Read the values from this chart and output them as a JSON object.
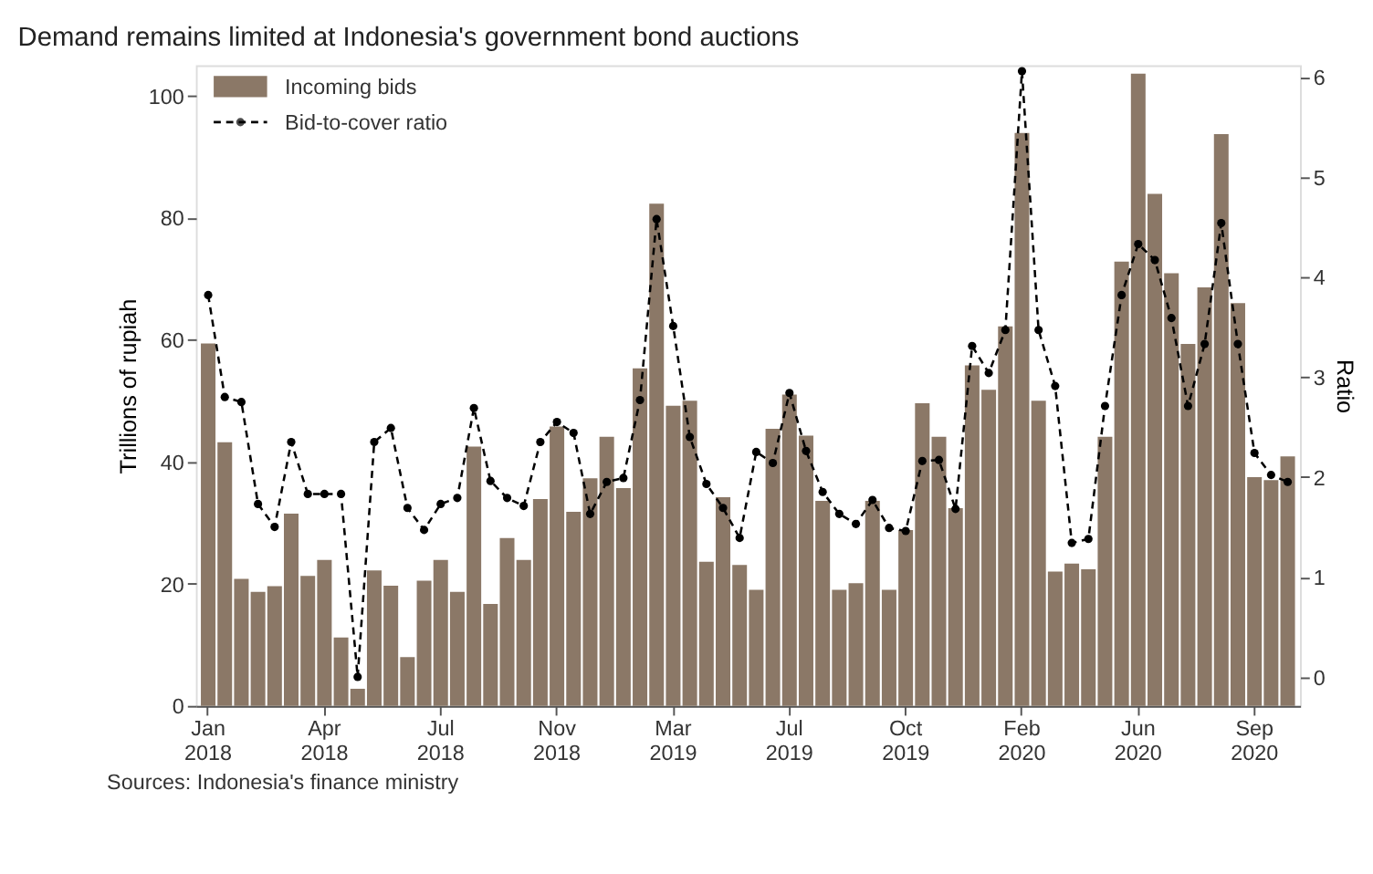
{
  "chart_data": {
    "type": "bar",
    "title": "Demand remains limited at Indonesia's government bond auctions",
    "categories": [
      "Jan 2018",
      null,
      null,
      null,
      null,
      null,
      null,
      "Apr 2018",
      null,
      null,
      null,
      null,
      null,
      null,
      "Jul 2018",
      null,
      null,
      null,
      null,
      null,
      null,
      "Nov 2018",
      null,
      null,
      null,
      null,
      null,
      null,
      "Mar 2019",
      null,
      null,
      null,
      null,
      null,
      null,
      "Jul 2019",
      null,
      null,
      null,
      null,
      null,
      null,
      "Oct 2019",
      null,
      null,
      null,
      null,
      null,
      null,
      "Feb 2020",
      null,
      null,
      null,
      null,
      null,
      null,
      "Jun 2020",
      null,
      null,
      null,
      null,
      null,
      null,
      "Sep 2020",
      null,
      null
    ],
    "series": [
      {
        "name": "Incoming bids",
        "color": "#8b7867",
        "values": [
          59.4,
          43.2,
          20.8,
          18.7,
          19.6,
          31.5,
          21.3,
          23.9,
          11.2,
          2.8,
          22.2,
          19.7,
          8.0,
          20.5,
          23.9,
          18.7,
          42.5,
          16.7,
          27.5,
          23.9,
          33.9,
          45.8,
          31.8,
          37.3,
          44.1,
          35.7,
          55.3,
          82.3,
          49.2,
          50.0,
          23.6,
          34.2,
          23.1,
          19.0,
          45.4,
          51.0,
          44.3,
          33.6,
          19.0,
          20.1,
          33.6,
          19.0,
          28.8,
          49.6,
          44.1,
          32.4,
          55.8,
          51.8,
          62.2,
          93.9,
          50.0,
          22.0,
          23.3,
          22.4,
          44.1,
          72.8,
          103.6,
          83.9,
          70.9,
          59.3,
          68.6,
          93.7,
          66.0,
          37.5,
          37.0,
          40.9
        ]
      },
      {
        "name": "Bid-to-cover ratio",
        "type": "line",
        "axis": "y2",
        "color": "#000000",
        "marker": "circle",
        "line_style": "dashed",
        "values": [
          3.82,
          2.8,
          2.75,
          1.73,
          1.5,
          2.35,
          1.83,
          1.83,
          1.83,
          0.0,
          2.35,
          2.49,
          1.69,
          1.47,
          1.73,
          1.79,
          2.69,
          1.96,
          1.79,
          1.71,
          2.35,
          2.55,
          2.44,
          1.63,
          1.95,
          1.99,
          2.77,
          4.58,
          3.51,
          2.4,
          1.93,
          1.69,
          1.39,
          2.25,
          2.14,
          2.84,
          2.26,
          1.85,
          1.63,
          1.53,
          1.77,
          1.49,
          1.46,
          2.16,
          2.17,
          1.68,
          3.31,
          3.04,
          3.47,
          6.06,
          3.47,
          2.91,
          1.34,
          1.38,
          2.71,
          3.82,
          4.33,
          4.17,
          3.59,
          2.71,
          3.33,
          4.54,
          3.33,
          2.24,
          2.02,
          1.95
        ]
      }
    ],
    "ylabel": "Trillions of rupiah",
    "y2label": "Ratio",
    "ylim": [
      0,
      105
    ],
    "yticks": [
      0,
      20,
      40,
      60,
      80,
      100
    ],
    "y2lim": [
      -0.29,
      6.12
    ],
    "y2ticks": [
      0,
      1,
      2,
      3,
      4,
      5,
      6
    ],
    "grid": false,
    "legend": "top left",
    "annotations": [
      "Sources: Indonesia's finance ministry"
    ]
  }
}
